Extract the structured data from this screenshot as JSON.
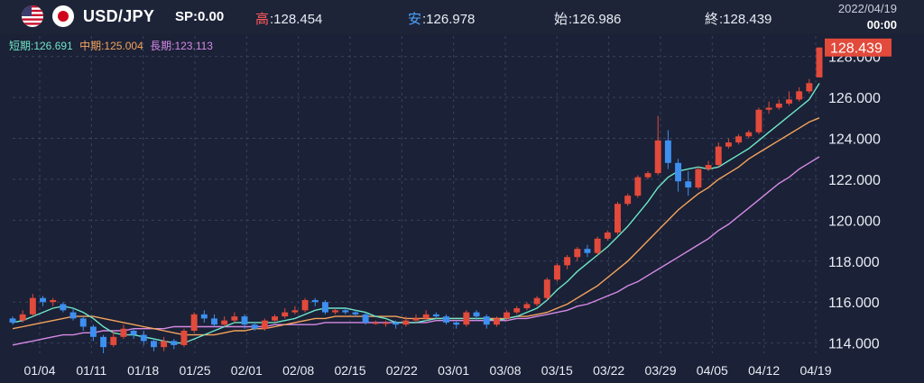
{
  "header": {
    "pair": "USD/JPY",
    "sp_label": "SP",
    "sp_value": ":0.00",
    "high_label": "高",
    "high_value": ":128.454",
    "low_label": "安",
    "low_value": ":126.978",
    "open_label": "始",
    "open_value": ":126.986",
    "close_label": "終",
    "close_value": ":128.439",
    "date": "2022/04/19",
    "time": "00:00"
  },
  "indicators": {
    "short": "短期:126.691",
    "mid": "中期:125.004",
    "long": "長期:123.113"
  },
  "colors": {
    "background": "#1b2136",
    "up": "#e24a3b",
    "down": "#3d8ff0",
    "ma_short": "#6ee7c8",
    "ma_mid": "#f5a45d",
    "ma_long": "#d58ae6",
    "grid": "#3a4260",
    "price_tag": "#e24a3b"
  },
  "chart_data": {
    "type": "candlestick",
    "current_price": "128.439",
    "ylim": [
      113.5,
      129.0
    ],
    "y_ticks": [
      "128.000",
      "126.000",
      "124.000",
      "122.000",
      "120.000",
      "118.000",
      "116.000",
      "114.000"
    ],
    "x_ticks": [
      "01/04",
      "01/11",
      "01/18",
      "01/25",
      "02/01",
      "02/08",
      "02/15",
      "02/22",
      "03/01",
      "03/08",
      "03/15",
      "03/22",
      "03/29",
      "04/05",
      "04/12",
      "04/19"
    ],
    "candles": [
      [
        115.2,
        115.0,
        115.3,
        114.9
      ],
      [
        115.1,
        115.4,
        115.6,
        115.0
      ],
      [
        115.4,
        116.2,
        116.4,
        115.3
      ],
      [
        116.2,
        116.0,
        116.3,
        115.8
      ],
      [
        116.0,
        116.1,
        116.2,
        115.8
      ],
      [
        115.9,
        115.6,
        116.0,
        115.5
      ],
      [
        115.5,
        115.2,
        115.7,
        115.1
      ],
      [
        115.2,
        114.8,
        115.3,
        114.6
      ],
      [
        114.8,
        114.3,
        114.9,
        114.1
      ],
      [
        114.3,
        113.8,
        114.4,
        113.5
      ],
      [
        113.9,
        114.3,
        114.6,
        113.8
      ],
      [
        114.3,
        114.7,
        114.9,
        114.2
      ],
      [
        114.6,
        114.4,
        114.7,
        114.2
      ],
      [
        114.4,
        114.1,
        114.6,
        113.9
      ],
      [
        114.1,
        113.8,
        114.2,
        113.6
      ],
      [
        113.8,
        114.1,
        114.3,
        113.6
      ],
      [
        114.1,
        113.9,
        114.2,
        113.7
      ],
      [
        113.9,
        114.6,
        114.7,
        113.8
      ],
      [
        114.6,
        115.4,
        115.5,
        114.5
      ],
      [
        115.4,
        115.2,
        115.6,
        115.0
      ],
      [
        115.2,
        114.9,
        115.4,
        114.8
      ],
      [
        114.9,
        115.1,
        115.3,
        114.8
      ],
      [
        115.1,
        115.3,
        115.5,
        115.0
      ],
      [
        115.3,
        114.9,
        115.4,
        114.7
      ],
      [
        114.9,
        114.7,
        115.0,
        114.6
      ],
      [
        114.7,
        115.1,
        115.2,
        114.6
      ],
      [
        115.1,
        115.3,
        115.4,
        115.0
      ],
      [
        115.3,
        115.5,
        115.7,
        115.2
      ],
      [
        115.5,
        115.6,
        115.8,
        115.4
      ],
      [
        115.6,
        116.1,
        116.2,
        115.5
      ],
      [
        116.1,
        116.0,
        116.2,
        115.8
      ],
      [
        116.0,
        115.5,
        116.1,
        115.4
      ],
      [
        115.5,
        115.6,
        115.7,
        115.4
      ],
      [
        115.6,
        115.5,
        115.7,
        115.4
      ],
      [
        115.5,
        115.4,
        115.6,
        115.3
      ],
      [
        115.4,
        115.0,
        115.5,
        114.9
      ],
      [
        115.0,
        115.0,
        115.1,
        114.9
      ],
      [
        115.0,
        115.0,
        115.1,
        114.8
      ],
      [
        115.0,
        114.9,
        115.1,
        114.7
      ],
      [
        114.9,
        115.1,
        115.3,
        114.8
      ],
      [
        115.1,
        115.2,
        115.4,
        115.0
      ],
      [
        115.2,
        115.4,
        115.6,
        115.1
      ],
      [
        115.4,
        115.3,
        115.5,
        115.2
      ],
      [
        115.3,
        115.0,
        115.4,
        114.9
      ],
      [
        115.0,
        114.9,
        115.1,
        114.7
      ],
      [
        114.9,
        115.5,
        115.6,
        114.8
      ],
      [
        115.5,
        115.3,
        115.6,
        115.1
      ],
      [
        115.3,
        114.9,
        115.4,
        114.7
      ],
      [
        114.9,
        115.2,
        115.3,
        114.8
      ],
      [
        115.2,
        115.5,
        115.6,
        115.1
      ],
      [
        115.5,
        115.7,
        115.8,
        115.4
      ],
      [
        115.7,
        115.9,
        116.0,
        115.6
      ],
      [
        115.9,
        116.2,
        116.3,
        115.8
      ],
      [
        116.2,
        117.1,
        117.2,
        116.1
      ],
      [
        117.1,
        117.8,
        117.9,
        117.0
      ],
      [
        117.8,
        118.2,
        118.3,
        117.6
      ],
      [
        118.2,
        118.6,
        118.7,
        118.0
      ],
      [
        118.6,
        118.4,
        118.8,
        118.2
      ],
      [
        118.4,
        119.1,
        119.2,
        118.3
      ],
      [
        119.1,
        119.4,
        119.5,
        119.0
      ],
      [
        119.4,
        120.8,
        120.9,
        119.3
      ],
      [
        120.8,
        121.2,
        121.3,
        120.7
      ],
      [
        121.2,
        122.1,
        122.2,
        121.1
      ],
      [
        122.1,
        122.3,
        122.4,
        122.0
      ],
      [
        122.3,
        123.9,
        125.1,
        122.2
      ],
      [
        123.9,
        122.8,
        124.4,
        122.5
      ],
      [
        122.8,
        121.9,
        123.0,
        121.4
      ],
      [
        121.9,
        121.6,
        122.4,
        121.2
      ],
      [
        121.6,
        122.5,
        122.6,
        121.5
      ],
      [
        122.5,
        122.7,
        122.9,
        122.4
      ],
      [
        122.7,
        123.6,
        123.8,
        122.6
      ],
      [
        123.6,
        123.8,
        124.0,
        123.5
      ],
      [
        123.8,
        124.1,
        124.2,
        123.7
      ],
      [
        124.1,
        124.3,
        124.4,
        124.0
      ],
      [
        124.3,
        125.4,
        125.5,
        124.2
      ],
      [
        125.4,
        125.5,
        125.8,
        125.2
      ],
      [
        125.5,
        125.7,
        125.9,
        125.4
      ],
      [
        125.7,
        125.9,
        126.3,
        125.6
      ],
      [
        125.9,
        126.3,
        126.5,
        125.8
      ],
      [
        126.3,
        126.7,
        126.9,
        126.2
      ],
      [
        126.98,
        128.44,
        128.45,
        126.98
      ]
    ],
    "ma_short": [
      115.0,
      115.1,
      115.3,
      115.5,
      115.7,
      115.8,
      115.7,
      115.5,
      115.2,
      114.8,
      114.5,
      114.4,
      114.4,
      114.3,
      114.2,
      114.1,
      114.0,
      114.0,
      114.2,
      114.4,
      114.6,
      114.8,
      115.0,
      115.0,
      115.0,
      115.0,
      115.0,
      115.1,
      115.2,
      115.4,
      115.6,
      115.7,
      115.7,
      115.7,
      115.6,
      115.5,
      115.3,
      115.2,
      115.0,
      115.0,
      115.0,
      115.1,
      115.2,
      115.2,
      115.2,
      115.2,
      115.2,
      115.2,
      115.1,
      115.2,
      115.3,
      115.5,
      115.7,
      116.1,
      116.6,
      117.0,
      117.5,
      117.9,
      118.3,
      118.7,
      119.2,
      119.7,
      120.3,
      120.9,
      121.6,
      122.1,
      122.4,
      122.5,
      122.6,
      122.5,
      122.6,
      122.9,
      123.2,
      123.5,
      123.9,
      124.3,
      124.7,
      125.1,
      125.5,
      125.9,
      126.69
    ],
    "ma_mid": [
      114.7,
      114.8,
      114.9,
      115.0,
      115.1,
      115.2,
      115.3,
      115.3,
      115.3,
      115.2,
      115.1,
      115.0,
      114.9,
      114.8,
      114.7,
      114.6,
      114.5,
      114.4,
      114.4,
      114.4,
      114.4,
      114.5,
      114.6,
      114.6,
      114.7,
      114.7,
      114.8,
      114.9,
      115.0,
      115.1,
      115.2,
      115.2,
      115.3,
      115.3,
      115.3,
      115.3,
      115.3,
      115.3,
      115.3,
      115.2,
      115.2,
      115.2,
      115.2,
      115.2,
      115.2,
      115.2,
      115.2,
      115.2,
      115.2,
      115.2,
      115.3,
      115.3,
      115.4,
      115.5,
      115.7,
      115.9,
      116.2,
      116.5,
      116.8,
      117.2,
      117.6,
      118.0,
      118.5,
      119.0,
      119.5,
      120.0,
      120.5,
      120.9,
      121.3,
      121.6,
      122.0,
      122.3,
      122.6,
      123.0,
      123.3,
      123.6,
      123.9,
      124.2,
      124.5,
      124.8,
      125.0
    ],
    "ma_long": [
      113.9,
      114.0,
      114.1,
      114.2,
      114.3,
      114.4,
      114.4,
      114.5,
      114.5,
      114.6,
      114.6,
      114.6,
      114.7,
      114.7,
      114.7,
      114.7,
      114.8,
      114.8,
      114.8,
      114.8,
      114.8,
      114.8,
      114.8,
      114.8,
      114.8,
      114.8,
      114.9,
      114.9,
      114.9,
      114.9,
      114.9,
      115.0,
      115.0,
      115.0,
      115.0,
      115.0,
      115.0,
      115.0,
      115.0,
      115.0,
      115.0,
      115.0,
      115.1,
      115.1,
      115.1,
      115.1,
      115.1,
      115.1,
      115.1,
      115.1,
      115.2,
      115.2,
      115.3,
      115.4,
      115.5,
      115.6,
      115.8,
      115.9,
      116.1,
      116.3,
      116.5,
      116.8,
      117.0,
      117.3,
      117.6,
      117.9,
      118.2,
      118.5,
      118.8,
      119.1,
      119.5,
      119.8,
      120.2,
      120.6,
      121.0,
      121.4,
      121.8,
      122.1,
      122.5,
      122.8,
      123.1
    ]
  }
}
